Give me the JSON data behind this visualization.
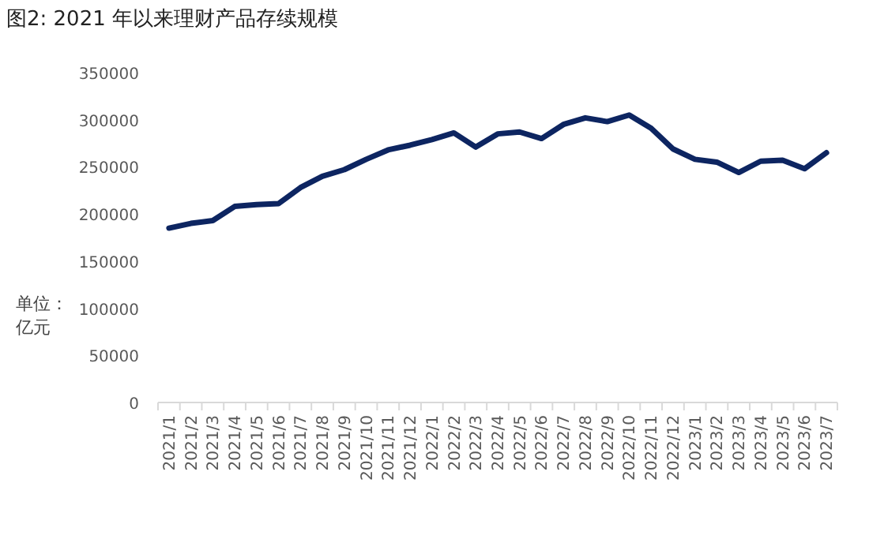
{
  "chart_data": {
    "type": "line",
    "title": "图2: 2021 年以来理财产品存续规模",
    "ylabel": "单位：亿元",
    "categories": [
      "2021/1",
      "2021/2",
      "2021/3",
      "2021/4",
      "2021/5",
      "2021/6",
      "2021/7",
      "2021/8",
      "2021/9",
      "2021/10",
      "2021/11",
      "2021/12",
      "2022/1",
      "2022/2",
      "2022/3",
      "2022/4",
      "2022/5",
      "2022/6",
      "2022/7",
      "2022/8",
      "2022/9",
      "2022/10",
      "2022/11",
      "2022/12",
      "2023/1",
      "2023/2",
      "2023/3",
      "2023/4",
      "2023/5",
      "2023/6",
      "2023/7"
    ],
    "series": [
      {
        "color": "#0d2561",
        "values": [
          185000,
          190000,
          193000,
          208000,
          210000,
          211000,
          228000,
          240000,
          247000,
          258000,
          268000,
          273000,
          279000,
          286000,
          271000,
          285000,
          287000,
          280000,
          295000,
          302000,
          298000,
          305000,
          291000,
          269000,
          258000,
          255000,
          244000,
          256000,
          257000,
          248000,
          265000
        ]
      }
    ],
    "ylim": [
      0,
      350000
    ],
    "yticks": [
      0,
      50000,
      100000,
      150000,
      200000,
      250000,
      300000,
      350000
    ],
    "grid": false,
    "marker": "none",
    "line_style": "solid"
  }
}
